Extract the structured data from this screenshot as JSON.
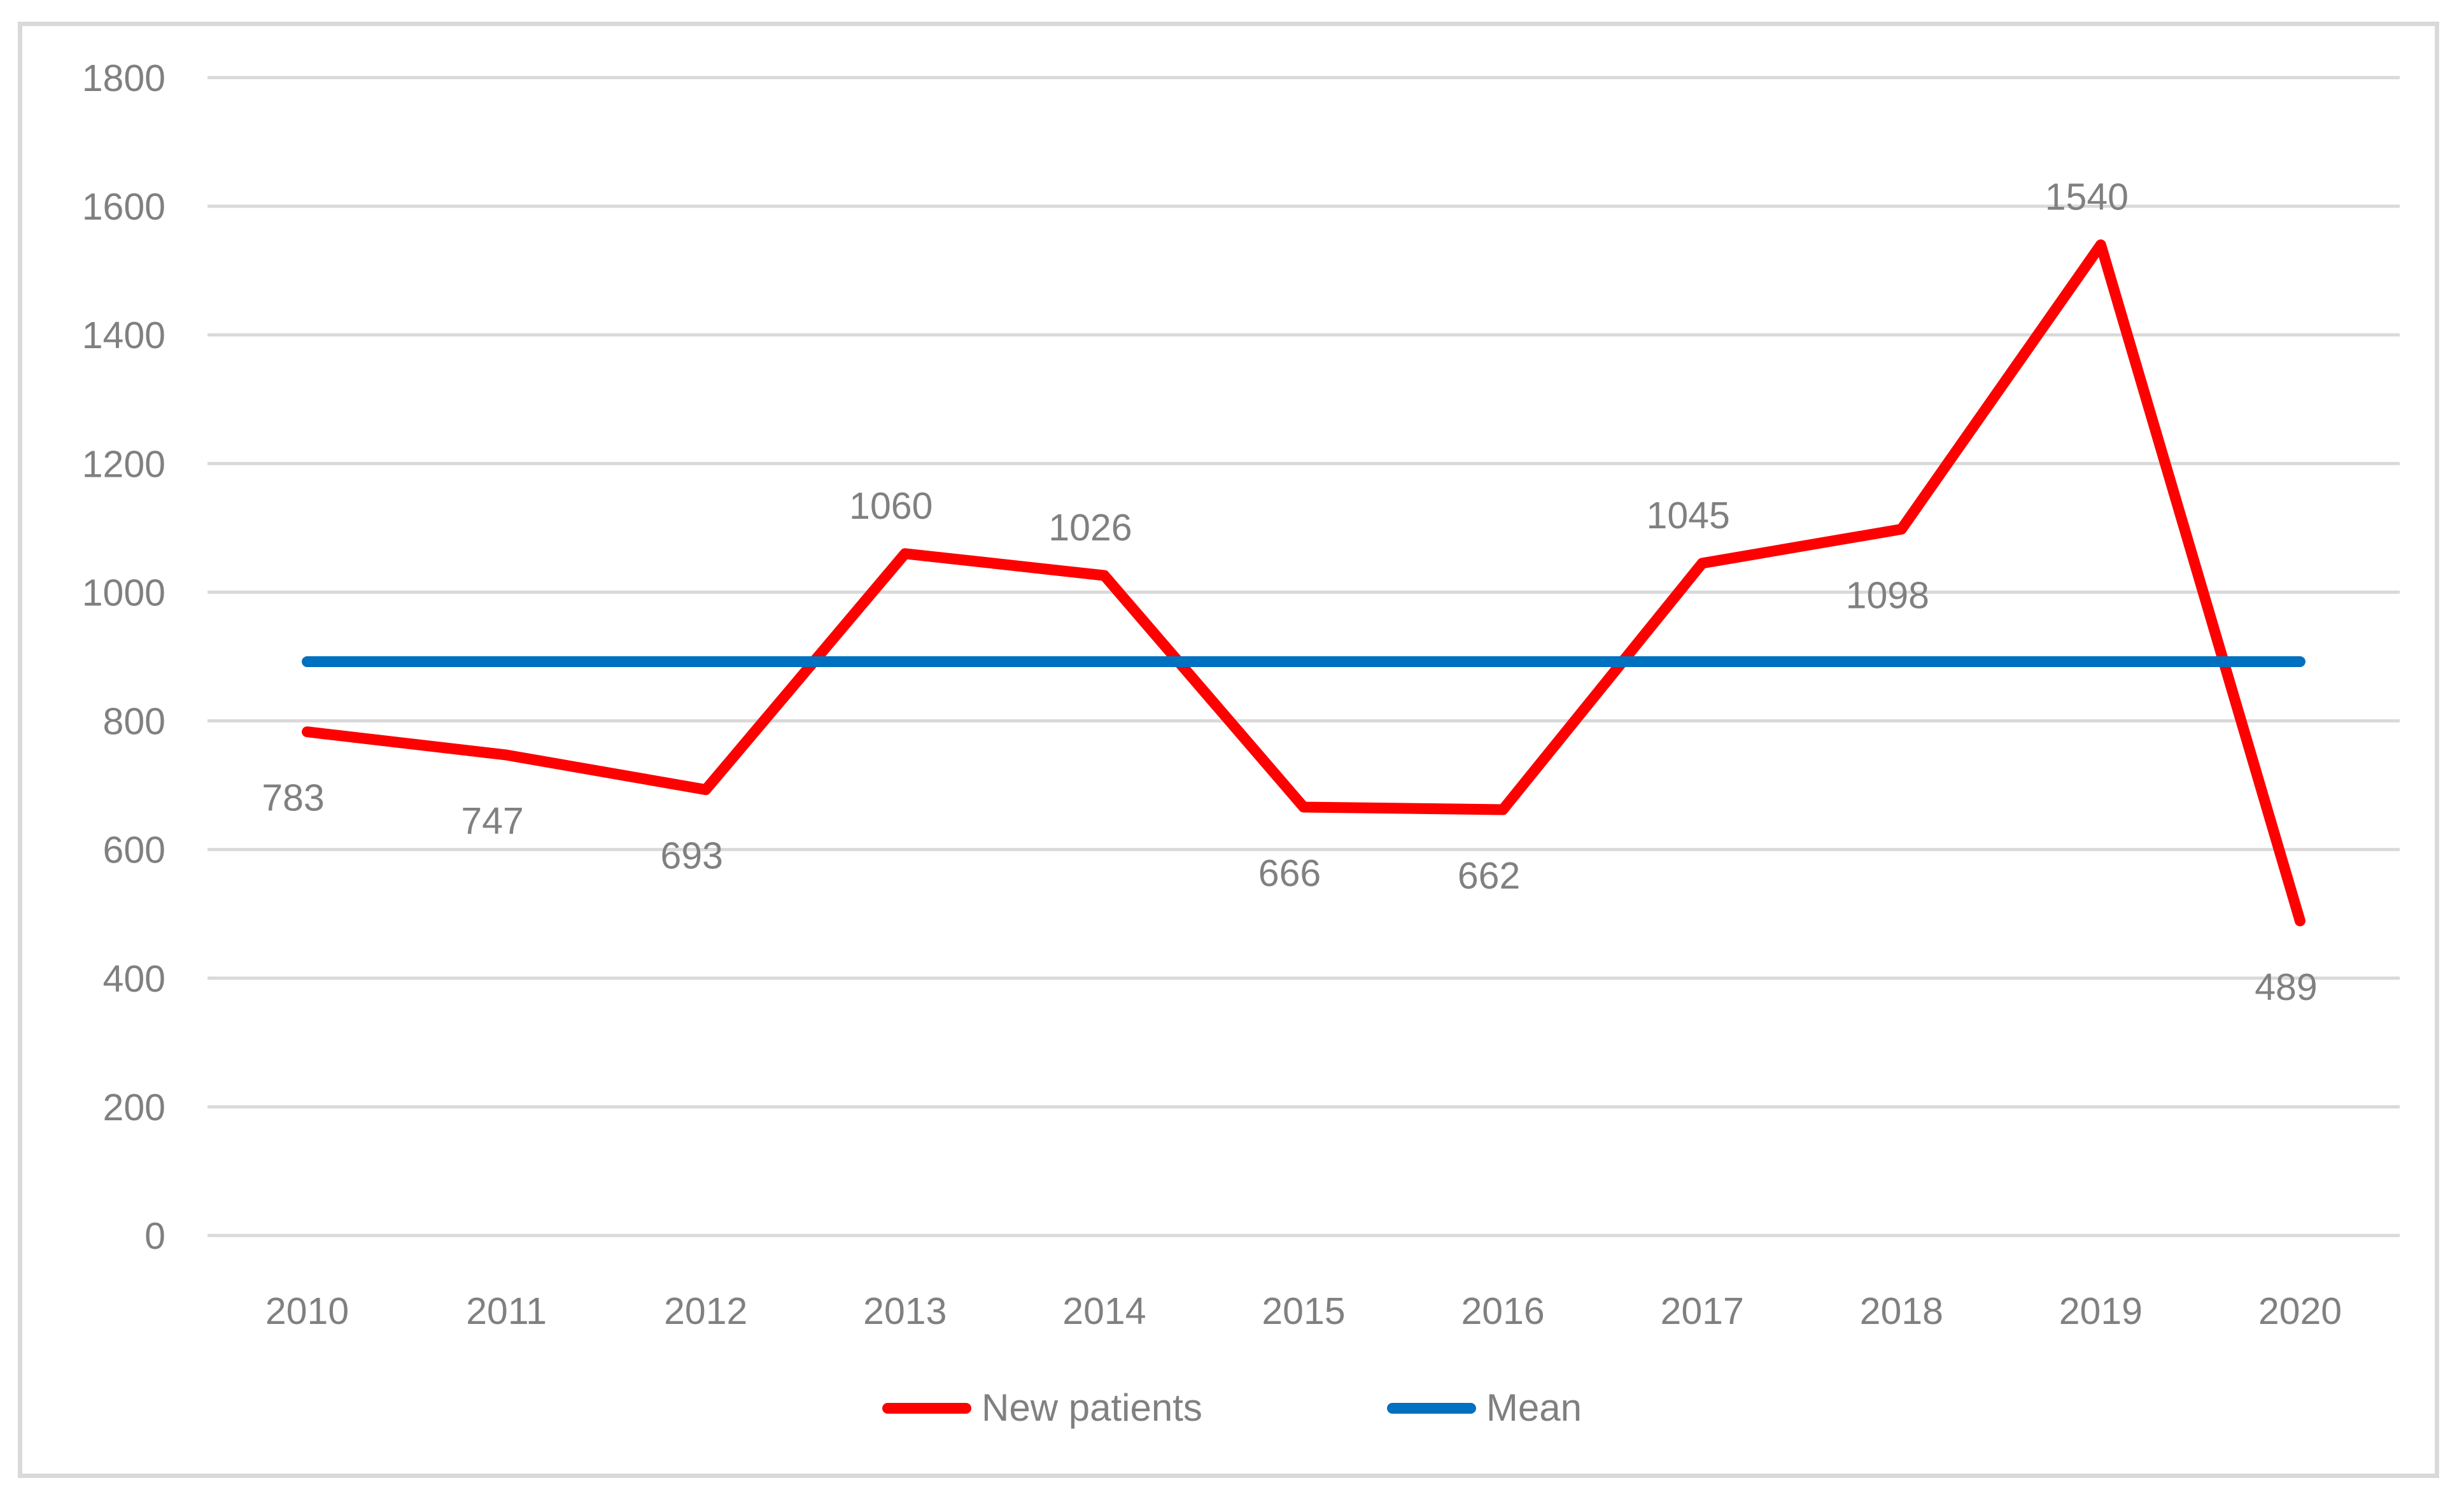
{
  "chart_data": {
    "type": "line",
    "title": "",
    "categories": [
      "2010",
      "2011",
      "2012",
      "2013",
      "2014",
      "2015",
      "2016",
      "2017",
      "2018",
      "2019",
      "2020"
    ],
    "series": [
      {
        "name": "New patients",
        "color": "#FF0000",
        "values": [
          783,
          747,
          693,
          1060,
          1026,
          666,
          662,
          1045,
          1098,
          1540,
          489
        ],
        "data_labels_shown": true,
        "label_positions": [
          "below",
          "below",
          "below",
          "above",
          "above",
          "below",
          "below",
          "above",
          "below",
          "above",
          "below"
        ]
      },
      {
        "name": "Mean",
        "color": "#0070C0",
        "value": 892,
        "data_labels_shown": false
      }
    ],
    "xlabel": "",
    "ylabel": "",
    "ylim": [
      0,
      1800
    ],
    "y_ticks": [
      0,
      200,
      400,
      600,
      800,
      1000,
      1200,
      1400,
      1600,
      1800
    ],
    "grid": true,
    "legend_position": "bottom-center",
    "colors": {
      "text": "#808080",
      "gridline": "#D9D9D9",
      "frame_border": "#D9D9D9",
      "background": "#FFFFFF"
    }
  }
}
